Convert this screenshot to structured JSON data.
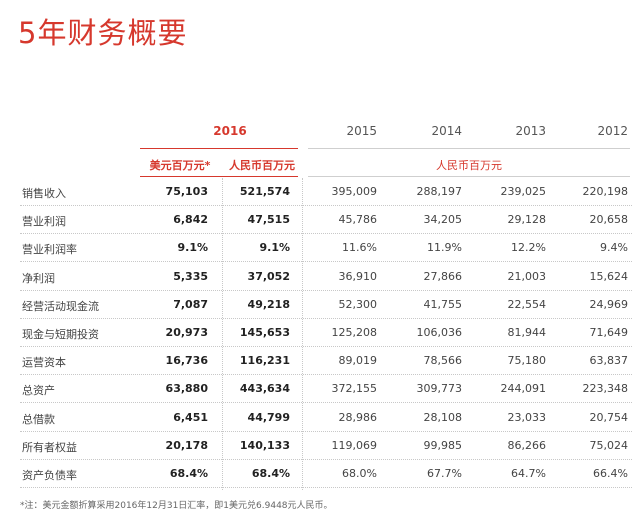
{
  "title": "5年财务概要",
  "years": {
    "y2016": "2016",
    "y2015": "2015",
    "y2014": "2014",
    "y2013": "2013",
    "y2012": "2012"
  },
  "units": {
    "usd": "美元百万元*",
    "rmb2016": "人民币百万元",
    "rmb_other": "人民币百万元"
  },
  "rows": [
    {
      "label": "销售收入",
      "usd": "75,103",
      "rmb": "521,574",
      "y2015": "395,009",
      "y2014": "288,197",
      "y2013": "239,025",
      "y2012": "220,198"
    },
    {
      "label": "营业利润",
      "usd": "6,842",
      "rmb": "47,515",
      "y2015": "45,786",
      "y2014": "34,205",
      "y2013": "29,128",
      "y2012": "20,658"
    },
    {
      "label": "营业利润率",
      "usd": "9.1%",
      "rmb": "9.1%",
      "y2015": "11.6%",
      "y2014": "11.9%",
      "y2013": "12.2%",
      "y2012": "9.4%"
    },
    {
      "label": "净利润",
      "usd": "5,335",
      "rmb": "37,052",
      "y2015": "36,910",
      "y2014": "27,866",
      "y2013": "21,003",
      "y2012": "15,624"
    },
    {
      "label": "经营活动现金流",
      "usd": "7,087",
      "rmb": "49,218",
      "y2015": "52,300",
      "y2014": "41,755",
      "y2013": "22,554",
      "y2012": "24,969"
    },
    {
      "label": "现金与短期投资",
      "usd": "20,973",
      "rmb": "145,653",
      "y2015": "125,208",
      "y2014": "106,036",
      "y2013": "81,944",
      "y2012": "71,649"
    },
    {
      "label": "运营资本",
      "usd": "16,736",
      "rmb": "116,231",
      "y2015": "89,019",
      "y2014": "78,566",
      "y2013": "75,180",
      "y2012": "63,837"
    },
    {
      "label": "总资产",
      "usd": "63,880",
      "rmb": "443,634",
      "y2015": "372,155",
      "y2014": "309,773",
      "y2013": "244,091",
      "y2012": "223,348"
    },
    {
      "label": "总借款",
      "usd": "6,451",
      "rmb": "44,799",
      "y2015": "28,986",
      "y2014": "28,108",
      "y2013": "23,033",
      "y2012": "20,754"
    },
    {
      "label": "所有者权益",
      "usd": "20,178",
      "rmb": "140,133",
      "y2015": "119,069",
      "y2014": "99,985",
      "y2013": "86,266",
      "y2012": "75,024"
    },
    {
      "label": "资产负债率",
      "usd": "68.4%",
      "rmb": "68.4%",
      "y2015": "68.0%",
      "y2014": "67.7%",
      "y2013": "64.7%",
      "y2012": "66.4%"
    }
  ],
  "footnote": "*注：美元金额折算采用2016年12月31日汇率，即1美元兑6.9448元人民币。",
  "colors": {
    "accent": "#d6382d"
  }
}
